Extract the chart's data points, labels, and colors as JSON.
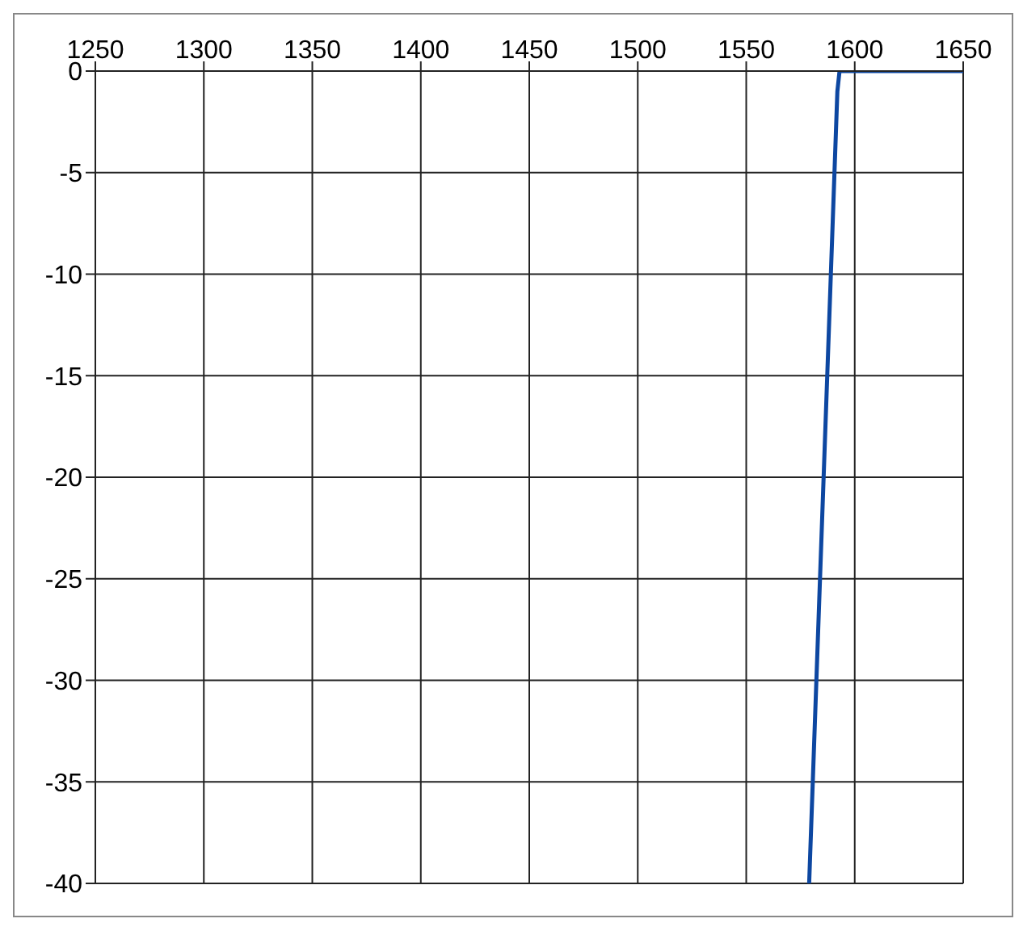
{
  "chart_data": {
    "type": "line",
    "x": [
      1579,
      1592,
      1593,
      1650
    ],
    "series": [
      {
        "color": "#0d47a1",
        "values": [
          -40,
          -1,
          0,
          0
        ]
      }
    ],
    "xlim": [
      1250,
      1650
    ],
    "xticks": [
      1250,
      1300,
      1350,
      1400,
      1450,
      1500,
      1550,
      1600,
      1650
    ],
    "ylim": [
      -40,
      0
    ],
    "yticks": [
      -40,
      -35,
      -30,
      -25,
      -20,
      -15,
      -10,
      -5,
      0
    ],
    "grid": true,
    "marker": "none",
    "line_style": "solid"
  }
}
